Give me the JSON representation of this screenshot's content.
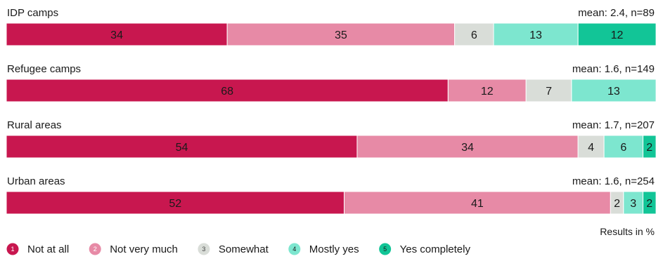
{
  "chart_data": {
    "type": "bar",
    "orientation": "horizontal",
    "stacked": true,
    "groups": [
      {
        "label": "IDP camps",
        "stat": "mean: 2.4, n=89",
        "values": [
          34,
          35,
          6,
          13,
          12
        ]
      },
      {
        "label": "Refugee camps",
        "stat": "mean: 1.6, n=149",
        "values": [
          68,
          12,
          7,
          13,
          0
        ]
      },
      {
        "label": "Rural areas",
        "stat": "mean: 1.7, n=207",
        "values": [
          54,
          34,
          4,
          6,
          2
        ]
      },
      {
        "label": "Urban areas",
        "stat": "mean: 1.6, n=254",
        "values": [
          52,
          41,
          2,
          3,
          2
        ]
      }
    ],
    "categories": [
      {
        "num": "1",
        "name": "Not at all",
        "color": "#c8174f",
        "num_color": "#ffffff"
      },
      {
        "num": "2",
        "name": "Not very much",
        "color": "#e78aa6",
        "num_color": "#ffffff"
      },
      {
        "num": "3",
        "name": "Somewhat",
        "color": "#d9ddd8",
        "num_color": "#444444"
      },
      {
        "num": "4",
        "name": "Mostly yes",
        "color": "#7de6cf",
        "num_color": "#1a1a1a"
      },
      {
        "num": "5",
        "name": "Yes completely",
        "color": "#12c597",
        "num_color": "#1a1a1a"
      }
    ],
    "note": "Results in %",
    "legend_position": "bottom-left",
    "grid": false
  }
}
